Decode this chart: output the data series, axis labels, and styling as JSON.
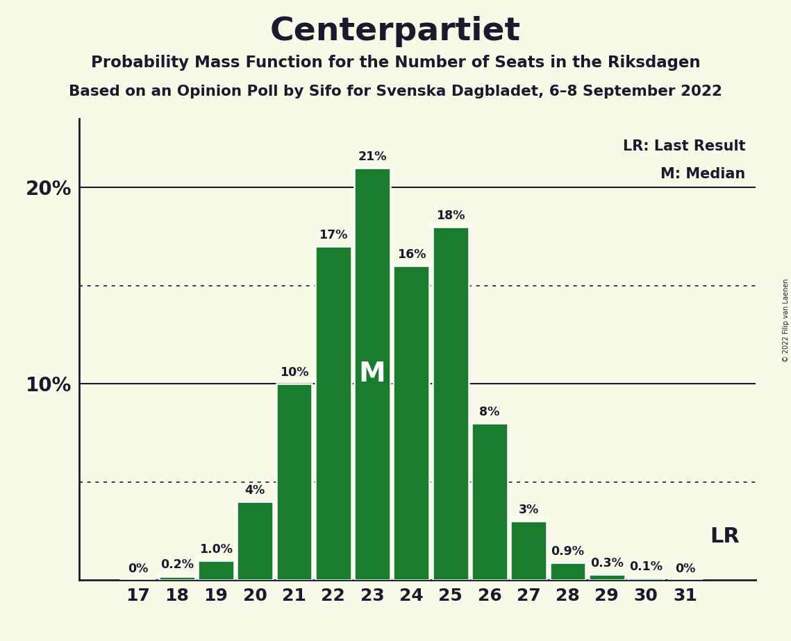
{
  "title": "Centerpartiet",
  "subtitle1": "Probability Mass Function for the Number of Seats in the Riksdagen",
  "subtitle2": "Based on an Opinion Poll by Sifo for Svenska Dagbladet, 6–8 September 2022",
  "copyright": "© 2022 Filip van Laenen",
  "seats": [
    17,
    18,
    19,
    20,
    21,
    22,
    23,
    24,
    25,
    26,
    27,
    28,
    29,
    30,
    31
  ],
  "probabilities": [
    0.0,
    0.2,
    1.0,
    4.0,
    10.0,
    17.0,
    21.0,
    16.0,
    18.0,
    8.0,
    3.0,
    0.9,
    0.3,
    0.1,
    0.0
  ],
  "bar_color": "#1a7d2e",
  "background_color": "#fafae8",
  "text_color": "#1a1a2e",
  "median_seat": 23,
  "lr_seat": 31,
  "legend_lr": "LR: Last Result",
  "legend_m": "M: Median",
  "ylim_max": 23.5,
  "ytick_positions": [
    10.0,
    20.0
  ],
  "ytick_labels": [
    "10%",
    "20%"
  ],
  "dotted_lines": [
    5.0,
    15.0
  ],
  "solid_lines": [
    10.0,
    20.0
  ],
  "prob_labels": [
    "0%",
    "0.2%",
    "1.0%",
    "4%",
    "10%",
    "17%",
    "21%",
    "16%",
    "18%",
    "8%",
    "3%",
    "0.9%",
    "0.3%",
    "0.1%",
    "0%"
  ]
}
